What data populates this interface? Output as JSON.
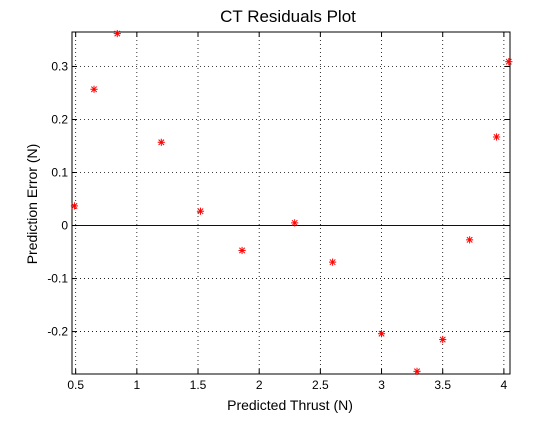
{
  "chart_data": {
    "type": "scatter",
    "title": "CT Residuals Plot",
    "xlabel": "Predicted Thrust (N)",
    "ylabel": "Prediction Error (N)",
    "xlim": [
      0.47,
      4.05
    ],
    "ylim": [
      -0.28,
      0.365
    ],
    "x_ticks": [
      0.5,
      1,
      1.5,
      2,
      2.5,
      3,
      3.5,
      4
    ],
    "x_tick_labels": [
      "0.5",
      "1",
      "1.5",
      "2",
      "2.5",
      "3",
      "3.5",
      "4"
    ],
    "y_ticks": [
      -0.2,
      -0.1,
      0,
      0.1,
      0.2,
      0.3
    ],
    "y_tick_labels": [
      "-0.2",
      "-0.1",
      "0",
      "0.1",
      "0.2",
      "0.3"
    ],
    "grid": true,
    "grid_style": "dotted",
    "reference_line": {
      "y": 0,
      "color": "#00008b"
    },
    "marker": "asterisk",
    "marker_color": "#ff0000",
    "series": [
      {
        "points": [
          {
            "x": 0.49,
            "y": 0.037
          },
          {
            "x": 0.65,
            "y": 0.257
          },
          {
            "x": 0.84,
            "y": 0.362
          },
          {
            "x": 1.2,
            "y": 0.157
          },
          {
            "x": 1.52,
            "y": 0.027
          },
          {
            "x": 1.86,
            "y": -0.047
          },
          {
            "x": 2.29,
            "y": 0.005
          },
          {
            "x": 2.6,
            "y": -0.069
          },
          {
            "x": 3.0,
            "y": -0.204
          },
          {
            "x": 3.29,
            "y": -0.275
          },
          {
            "x": 3.5,
            "y": -0.215
          },
          {
            "x": 3.72,
            "y": -0.027
          },
          {
            "x": 3.94,
            "y": 0.167
          },
          {
            "x": 4.04,
            "y": 0.309
          }
        ]
      }
    ]
  }
}
